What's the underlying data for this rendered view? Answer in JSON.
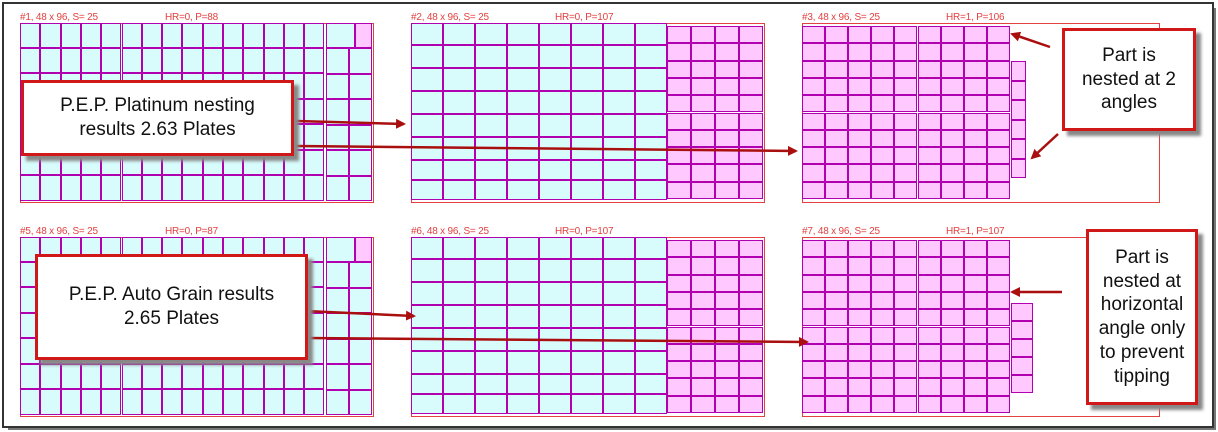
{
  "colors": {
    "sheet_border": "#e34040",
    "header_text": "#e34040",
    "part_cyan": "#d8fbfb",
    "part_pink": "#ffc8ff",
    "part_border": "#b000b0",
    "callout_border": "#d01818",
    "arrow": "#aa0f0f"
  },
  "sheets": [
    {
      "id": "s1",
      "label": "#1, 48 x 96, S= 25",
      "hr_p": "HR=0, P=88"
    },
    {
      "id": "s2",
      "label": "#2, 48 x 96, S= 25",
      "hr_p": "HR=0, P=107"
    },
    {
      "id": "s3",
      "label": "#3, 48 x 96, S= 25",
      "hr_p": "HR=1, P=106"
    },
    {
      "id": "s5",
      "label": "#5, 48 x 96, S= 25",
      "hr_p": "HR=0, P=87"
    },
    {
      "id": "s6",
      "label": "#6, 48 x 96, S= 25",
      "hr_p": "HR=0, P=107"
    },
    {
      "id": "s7",
      "label": "#7, 48 x 96, S= 25",
      "hr_p": "HR=1, P=107"
    }
  ],
  "callouts": {
    "platinum": {
      "line1": "P.E.P. Platinum nesting",
      "line2": "results  2.63 Plates"
    },
    "auto_grain": {
      "line1": "P.E.P. Auto Grain results",
      "line2": "2.65 Plates"
    },
    "two_angles": {
      "line1": "Part is",
      "line2": "nested at 2",
      "line3": "angles"
    },
    "horizontal": {
      "line1": "Part is",
      "line2": "nested at",
      "line3": "horizontal",
      "line4": "angle only",
      "line5": "to prevent",
      "line6": "tipping"
    }
  }
}
